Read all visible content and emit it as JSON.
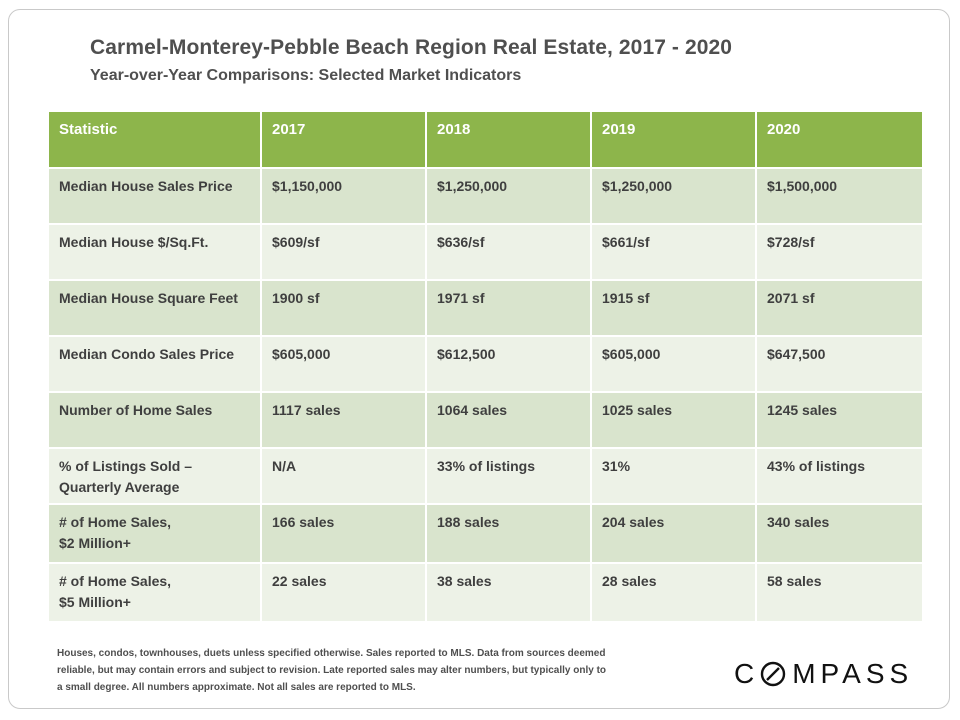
{
  "header": {
    "title": "Carmel-Monterey-Pebble Beach Region Real Estate, 2017 - 2020",
    "subtitle": "Year-over-Year  Comparisons:  Selected Market Indicators"
  },
  "table": {
    "columns": [
      "Statistic",
      "2017",
      "2018",
      "2019",
      "2020"
    ],
    "rows": [
      {
        "label": [
          "Median House Sales Price"
        ],
        "values": [
          "$1,150,000",
          "$1,250,000",
          "$1,250,000",
          "$1,500,000"
        ]
      },
      {
        "label": [
          "Median House $/Sq.Ft."
        ],
        "values": [
          "$609/sf",
          "$636/sf",
          "$661/sf",
          "$728/sf"
        ]
      },
      {
        "label": [
          "Median House Square Feet"
        ],
        "values": [
          "1900 sf",
          "1971 sf",
          "1915 sf",
          "2071 sf"
        ]
      },
      {
        "label": [
          "Median Condo Sales Price"
        ],
        "values": [
          "$605,000",
          "$612,500",
          "$605,000",
          "$647,500"
        ]
      },
      {
        "label": [
          "Number of Home Sales"
        ],
        "values": [
          "1117 sales",
          "1064 sales",
          "1025 sales",
          "1245 sales"
        ]
      },
      {
        "label": [
          "% of Listings Sold –",
          "Quarterly Average"
        ],
        "values": [
          "N/A",
          "33% of listings",
          "31%",
          "43% of listings"
        ]
      },
      {
        "label": [
          "# of Home Sales,",
          "$2 Million+"
        ],
        "values": [
          "166 sales",
          "188 sales",
          "204 sales",
          "340 sales"
        ]
      },
      {
        "label": [
          "# of Home Sales,",
          "$5 Million+"
        ],
        "values": [
          "22 sales",
          "38 sales",
          "28 sales",
          "58 sales"
        ]
      }
    ]
  },
  "footnote": {
    "lines": [
      "Houses, condos, townhouses, duets unless specified otherwise. Sales reported to MLS. Data from sources deemed",
      "reliable, but may contain errors and subject to revision. Late reported sales may alter numbers, but typically only to",
      "a small degree. All numbers approximate. Not all sales are reported to MLS."
    ]
  },
  "logo": {
    "text_before": "C",
    "text_after": "MPASS"
  }
}
